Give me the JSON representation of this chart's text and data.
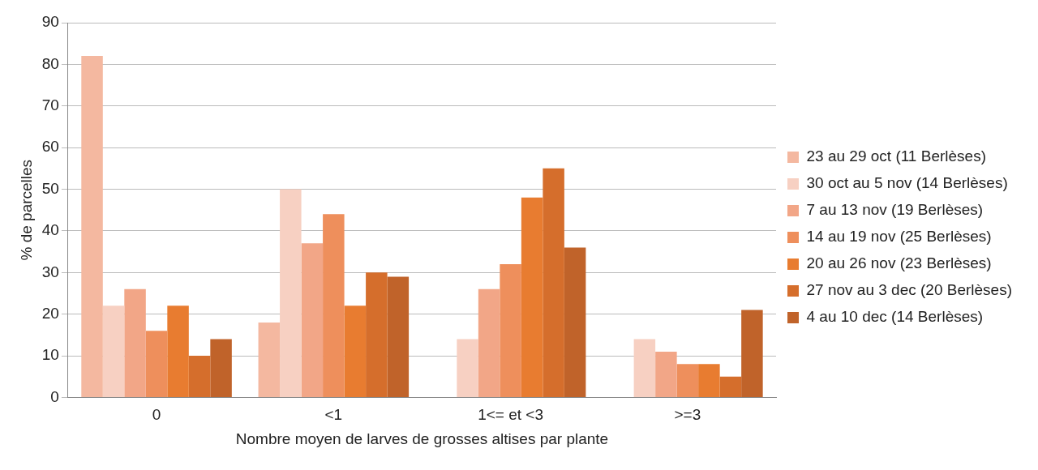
{
  "chart_data": {
    "type": "bar",
    "xlabel": "Nombre moyen de larves de grosses altises par plante",
    "ylabel": "% de parcelles",
    "categories": [
      "0",
      "<1",
      "1<= et <3",
      ">=3"
    ],
    "series": [
      {
        "name": "23 au 29 oct (11 Berlèses)",
        "color": "#f4b8a0",
        "values": [
          82,
          18,
          0,
          0
        ]
      },
      {
        "name": "30 oct au 5 nov (14 Berlèses)",
        "color": "#f7d0c2",
        "values": [
          22,
          50,
          14,
          14
        ]
      },
      {
        "name": "7 au 13 nov (19 Berlèses)",
        "color": "#f2a687",
        "values": [
          26,
          37,
          26,
          11
        ]
      },
      {
        "name": "14 au 19 nov (25 Berlèses)",
        "color": "#ee8f5c",
        "values": [
          16,
          44,
          32,
          8
        ]
      },
      {
        "name": "20 au 26 nov (23 Berlèses)",
        "color": "#e87c30",
        "values": [
          22,
          22,
          48,
          8
        ]
      },
      {
        "name": "27 nov au 3 dec (20 Berlèses)",
        "color": "#d56e2c",
        "values": [
          10,
          30,
          55,
          5
        ]
      },
      {
        "name": "4 au 10 dec (14 Berlèses)",
        "color": "#c0632a",
        "values": [
          14,
          29,
          36,
          21
        ]
      }
    ],
    "ylim": [
      0,
      90
    ],
    "yticks": [
      0,
      10,
      20,
      30,
      40,
      50,
      60,
      70,
      80,
      90
    ],
    "grid": "y",
    "legend": "right"
  }
}
